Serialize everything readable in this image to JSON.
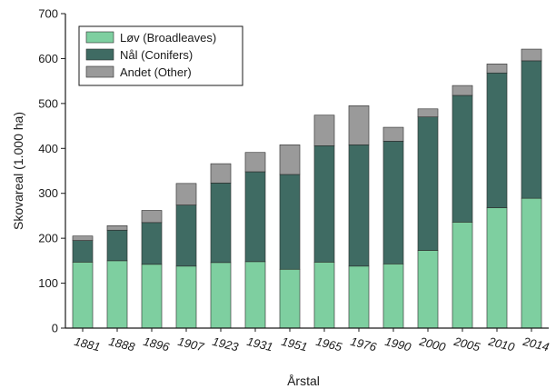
{
  "chart_data": {
    "type": "bar",
    "stacked": true,
    "categories": [
      "1881",
      "1888",
      "1896",
      "1907",
      "1923",
      "1931",
      "1951",
      "1965",
      "1976",
      "1990",
      "2000",
      "2005",
      "2010",
      "2014"
    ],
    "series": [
      {
        "name": "Løv (Broadleaves)",
        "color": "#7ecfa0",
        "values": [
          147,
          150,
          142,
          138,
          146,
          148,
          131,
          147,
          138,
          143,
          173,
          236,
          268,
          289
        ]
      },
      {
        "name": "Nål (Conifers)",
        "color": "#3f6b63",
        "values": [
          48,
          68,
          93,
          136,
          177,
          200,
          211,
          259,
          270,
          273,
          297,
          282,
          300,
          306
        ]
      },
      {
        "name": "Andet (Other)",
        "color": "#9a9a9a",
        "values": [
          10,
          10,
          27,
          48,
          43,
          43,
          66,
          68,
          87,
          31,
          18,
          22,
          20,
          26
        ]
      }
    ],
    "xlabel": "Årstal",
    "ylabel": "Skovareal (1.000 ha)",
    "ylim": [
      0,
      700
    ],
    "yticks": [
      0,
      100,
      200,
      300,
      400,
      500,
      600,
      700
    ],
    "grid": false,
    "legend": "top-left"
  }
}
